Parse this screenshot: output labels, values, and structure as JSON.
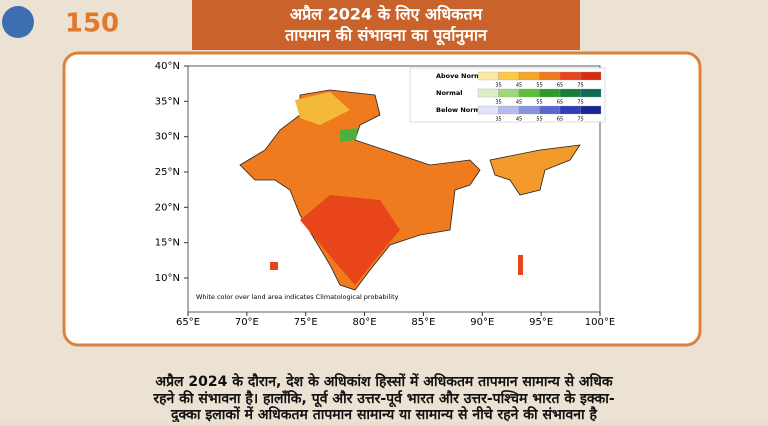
{
  "header": {
    "logo_text": "150",
    "title_lines": [
      "अप्रैल 2024 के लिए अधिकतम",
      "तापमान की संभावना का पूर्वानुमान"
    ]
  },
  "map": {
    "lat_labels": [
      "40°N",
      "35°N",
      "30°N",
      "25°N",
      "20°N",
      "15°N",
      "10°N"
    ],
    "lon_labels": [
      "65°E",
      "70°E",
      "75°E",
      "80°E",
      "85°E",
      "90°E",
      "95°E",
      "100°E"
    ],
    "legend": [
      {
        "label": "Above Normal",
        "ticks": [
          "35",
          "45",
          "55",
          "65",
          "75"
        ]
      },
      {
        "label": "Normal",
        "ticks": [
          "35",
          "45",
          "55",
          "65",
          "75"
        ]
      },
      {
        "label": "Below Normal",
        "ticks": [
          "35",
          "45",
          "55",
          "65",
          "75"
        ]
      }
    ],
    "note": "White color over land area indicates Climatological probability"
  },
  "caption": {
    "lines": [
      "अप्रैल 2024 के दौरान, देश के अधिकांश हिस्सों में अधिकतम तापमान सामान्य से अधिक",
      "रहने की संभावना है। हालाँकि, पूर्व और उत्तर-पूर्व भारत और उत्तर-पश्चिम भारत के इक्का-",
      "दुक्का इलाकों में अधिकतम तापमान सामान्य या सामान्य से नीचे रहने की संभावना है"
    ]
  }
}
